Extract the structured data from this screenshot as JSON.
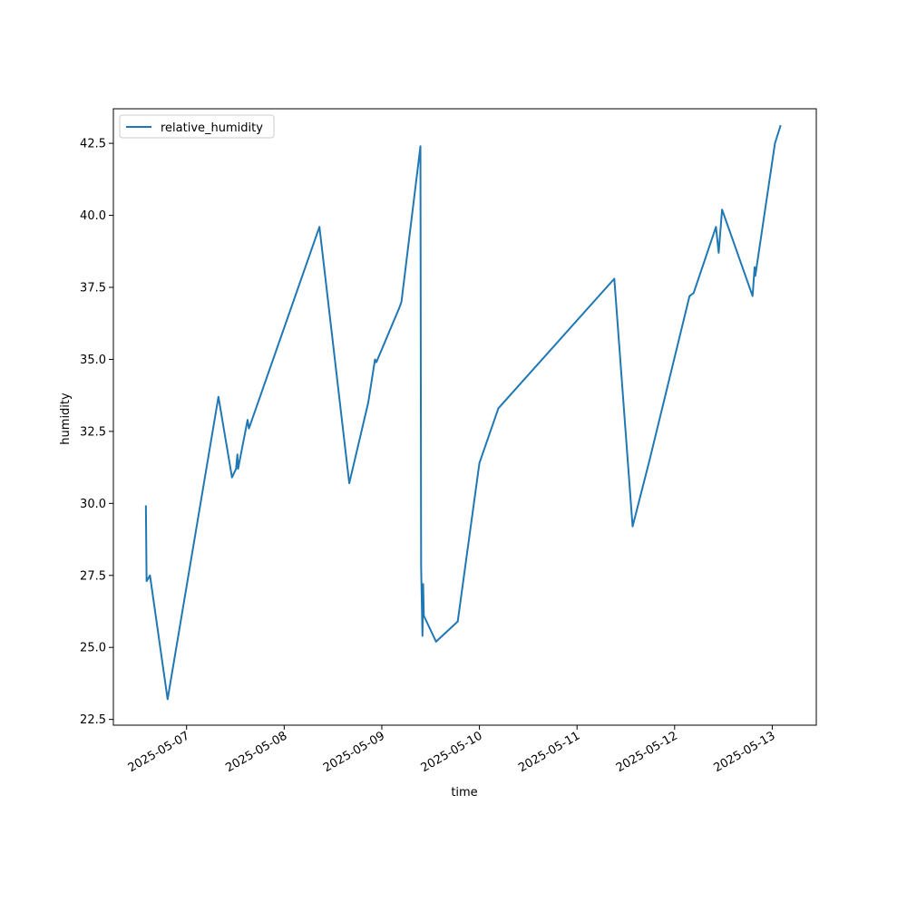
{
  "chart_data": {
    "type": "line",
    "title": "",
    "xlabel": "time",
    "ylabel": "humidity",
    "x_axis_type": "date",
    "xlim": [
      "2025-05-06T06:00",
      "2025-05-13T10:50"
    ],
    "ylim": [
      22.3,
      43.7
    ],
    "x_ticks": [
      "2025-05-07",
      "2025-05-08",
      "2025-05-09",
      "2025-05-10",
      "2025-05-11",
      "2025-05-12",
      "2025-05-13"
    ],
    "y_ticks": [
      "22.5",
      "25.0",
      "27.5",
      "30.0",
      "32.5",
      "35.0",
      "37.5",
      "40.0",
      "42.5"
    ],
    "grid": false,
    "legend": {
      "position": "top-left",
      "entries": [
        "relative_humidity"
      ]
    },
    "series": [
      {
        "name": "relative_humidity",
        "color": "#1f77b4",
        "points": [
          [
            "2025-05-06T14:00",
            29.9
          ],
          [
            "2025-05-06T14:10",
            27.3
          ],
          [
            "2025-05-06T15:00",
            27.5
          ],
          [
            "2025-05-06T19:20",
            23.2
          ],
          [
            "2025-05-07T07:50",
            33.7
          ],
          [
            "2025-05-07T11:10",
            30.9
          ],
          [
            "2025-05-07T12:10",
            31.2
          ],
          [
            "2025-05-07T12:30",
            31.7
          ],
          [
            "2025-05-07T12:40",
            31.2
          ],
          [
            "2025-05-07T15:00",
            32.9
          ],
          [
            "2025-05-07T15:20",
            32.6
          ],
          [
            "2025-05-08T08:40",
            39.6
          ],
          [
            "2025-05-08T16:00",
            30.7
          ],
          [
            "2025-05-08T20:40",
            33.5
          ],
          [
            "2025-05-08T22:20",
            35.0
          ],
          [
            "2025-05-08T22:40",
            34.9
          ],
          [
            "2025-05-09T04:20",
            36.8
          ],
          [
            "2025-05-09T04:50",
            37.0
          ],
          [
            "2025-05-09T09:30",
            42.4
          ],
          [
            "2025-05-09T09:40",
            27.8
          ],
          [
            "2025-05-09T10:00",
            25.4
          ],
          [
            "2025-05-09T10:10",
            27.2
          ],
          [
            "2025-05-09T10:20",
            26.1
          ],
          [
            "2025-05-09T13:20",
            25.2
          ],
          [
            "2025-05-09T18:40",
            25.9
          ],
          [
            "2025-05-10T00:00",
            31.4
          ],
          [
            "2025-05-10T04:40",
            33.3
          ],
          [
            "2025-05-11T09:10",
            37.8
          ],
          [
            "2025-05-11T13:40",
            29.2
          ],
          [
            "2025-05-11T17:50",
            31.5
          ],
          [
            "2025-05-12T03:40",
            37.2
          ],
          [
            "2025-05-12T04:40",
            37.3
          ],
          [
            "2025-05-12T10:10",
            39.6
          ],
          [
            "2025-05-12T10:50",
            38.7
          ],
          [
            "2025-05-12T11:40",
            40.2
          ],
          [
            "2025-05-12T19:10",
            37.2
          ],
          [
            "2025-05-12T19:40",
            38.2
          ],
          [
            "2025-05-12T19:50",
            37.9
          ],
          [
            "2025-05-13T00:40",
            42.5
          ],
          [
            "2025-05-13T02:00",
            43.1
          ]
        ]
      }
    ]
  }
}
